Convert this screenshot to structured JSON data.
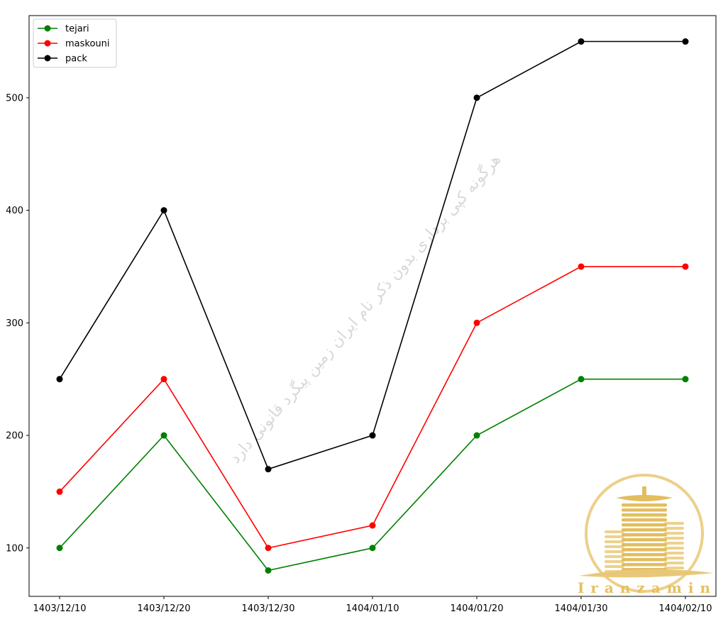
{
  "chart_data": {
    "type": "line",
    "categories": [
      "1403/12/10",
      "1403/12/20",
      "1403/12/30",
      "1404/01/10",
      "1404/01/20",
      "1404/01/30",
      "1404/02/10"
    ],
    "series": [
      {
        "name": "tejari",
        "color": "#008000",
        "values": [
          100,
          200,
          80,
          100,
          200,
          250,
          250
        ]
      },
      {
        "name": "maskouni",
        "color": "#ff0000",
        "values": [
          150,
          250,
          100,
          120,
          300,
          350,
          350
        ]
      },
      {
        "name": "pack",
        "color": "#000000",
        "values": [
          250,
          400,
          170,
          200,
          500,
          550,
          550
        ]
      }
    ],
    "ylim": [
      57,
      573
    ],
    "yticks": [
      100,
      200,
      300,
      400,
      500
    ],
    "legend": "top-left",
    "grid": false,
    "marker": "circle"
  },
  "watermark": {
    "text": "هرگونه کپی برداری بدون ذکر نام ایران زمین پیگرد قانونی دارد",
    "logo_text": "Iranzamin"
  }
}
